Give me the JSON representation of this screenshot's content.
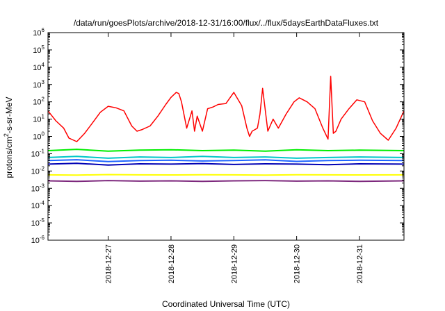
{
  "chart_data": {
    "type": "line",
    "title": "/data/run/goesPlots/archive/2018-12-31/16:00/flux/../flux/5daysEarthDataFluxes.txt",
    "xlabel": "Coordinated Universal Time (UTC)",
    "ylabel_parts": {
      "pre": "protons/cm",
      "sup": "2",
      "post": "-s-sr-MeV"
    },
    "x_unit": "day",
    "xlim": [
      "2018-12-26 01:00",
      "2018-12-31 17:00"
    ],
    "ylim": [
      1e-06,
      1000000.0
    ],
    "yscale": "log",
    "y_ticks": [
      {
        "value": 1e-06,
        "base": "10",
        "exp": "-6"
      },
      {
        "value": 1e-05,
        "base": "10",
        "exp": "-5"
      },
      {
        "value": 0.0001,
        "base": "10",
        "exp": "-4"
      },
      {
        "value": 0.001,
        "base": "10",
        "exp": "-3"
      },
      {
        "value": 0.01,
        "base": "10",
        "exp": "-2"
      },
      {
        "value": 0.1,
        "base": "10",
        "exp": "-1"
      },
      {
        "value": 1,
        "base": "10",
        "exp": "0"
      },
      {
        "value": 10,
        "base": "10",
        "exp": "1"
      },
      {
        "value": 100,
        "base": "10",
        "exp": "2"
      },
      {
        "value": 1000,
        "base": "10",
        "exp": "3"
      },
      {
        "value": 10000,
        "base": "10",
        "exp": "4"
      },
      {
        "value": 100000,
        "base": "10",
        "exp": "5"
      },
      {
        "value": 1000000,
        "base": "10",
        "exp": "6"
      }
    ],
    "x_ticks": [
      {
        "x": "2018-12-27",
        "label": "2018-12-27"
      },
      {
        "x": "2018-12-28",
        "label": "2018-12-28"
      },
      {
        "x": "2018-12-29",
        "label": "2018-12-29"
      },
      {
        "x": "2018-12-30",
        "label": "2018-12-30"
      },
      {
        "x": "2018-12-31",
        "label": "2018-12-31"
      }
    ],
    "grid": false,
    "legend": "none",
    "series": [
      {
        "color": "#ff0000",
        "x": [
          "2018-12-26 01:00",
          "2018-12-26 04:00",
          "2018-12-26 07:00",
          "2018-12-26 09:00",
          "2018-12-26 12:00",
          "2018-12-26 15:00",
          "2018-12-26 18:00",
          "2018-12-26 21:00",
          "2018-12-27 00:00",
          "2018-12-27 03:00",
          "2018-12-27 06:00",
          "2018-12-27 09:00",
          "2018-12-27 11:00",
          "2018-12-27 13:00",
          "2018-12-27 16:00",
          "2018-12-27 19:00",
          "2018-12-27 22:00",
          "2018-12-28 00:00",
          "2018-12-28 02:00",
          "2018-12-28 03:00",
          "2018-12-28 04:00",
          "2018-12-28 06:00",
          "2018-12-28 08:00",
          "2018-12-28 09:00",
          "2018-12-28 10:00",
          "2018-12-28 12:00",
          "2018-12-28 14:00",
          "2018-12-28 16:00",
          "2018-12-28 18:00",
          "2018-12-28 21:00",
          "2018-12-29 00:00",
          "2018-12-29 03:00",
          "2018-12-29 05:00",
          "2018-12-29 06:00",
          "2018-12-29 07:00",
          "2018-12-29 09:00",
          "2018-12-29 10:00",
          "2018-12-29 11:00",
          "2018-12-29 13:00",
          "2018-12-29 15:00",
          "2018-12-29 17:00",
          "2018-12-29 20:00",
          "2018-12-29 23:00",
          "2018-12-30 01:00",
          "2018-12-30 04:00",
          "2018-12-30 07:00",
          "2018-12-30 10:00",
          "2018-12-30 12:00",
          "2018-12-30 13:00",
          "2018-12-30 14:00",
          "2018-12-30 15:00",
          "2018-12-30 17:00",
          "2018-12-30 20:00",
          "2018-12-30 23:00",
          "2018-12-31 02:00",
          "2018-12-31 05:00",
          "2018-12-31 08:00",
          "2018-12-31 11:00",
          "2018-12-31 14:00",
          "2018-12-31 17:00"
        ],
        "y": [
          30,
          8,
          3,
          0.8,
          0.5,
          1.5,
          6,
          25,
          55,
          45,
          30,
          4,
          2,
          2.5,
          4,
          15,
          70,
          180,
          350,
          300,
          100,
          3,
          30,
          2,
          15,
          2,
          40,
          50,
          70,
          80,
          350,
          60,
          3,
          1,
          2,
          3,
          20,
          600,
          2,
          10,
          3,
          20,
          100,
          170,
          100,
          40,
          3,
          0.7,
          3000,
          1.5,
          2,
          10,
          40,
          130,
          100,
          8,
          1.5,
          0.6,
          3,
          30
        ]
      },
      {
        "color": "#00ee00",
        "x": [
          "2018-12-26 01:00",
          "2018-12-26 12:00",
          "2018-12-27 00:00",
          "2018-12-27 12:00",
          "2018-12-28 00:00",
          "2018-12-28 12:00",
          "2018-12-29 00:00",
          "2018-12-29 12:00",
          "2018-12-30 00:00",
          "2018-12-30 12:00",
          "2018-12-31 00:00",
          "2018-12-31 17:00"
        ],
        "y": [
          0.15,
          0.18,
          0.14,
          0.16,
          0.17,
          0.15,
          0.16,
          0.14,
          0.17,
          0.15,
          0.16,
          0.15
        ]
      },
      {
        "color": "#00c8c8",
        "x": [
          "2018-12-26 01:00",
          "2018-12-26 12:00",
          "2018-12-27 00:00",
          "2018-12-27 12:00",
          "2018-12-28 00:00",
          "2018-12-28 12:00",
          "2018-12-29 00:00",
          "2018-12-29 12:00",
          "2018-12-30 00:00",
          "2018-12-30 12:00",
          "2018-12-31 00:00",
          "2018-12-31 17:00"
        ],
        "y": [
          0.06,
          0.07,
          0.055,
          0.065,
          0.06,
          0.07,
          0.06,
          0.065,
          0.055,
          0.06,
          0.065,
          0.06
        ]
      },
      {
        "color": "#1e64ff",
        "x": [
          "2018-12-26 01:00",
          "2018-12-26 12:00",
          "2018-12-27 00:00",
          "2018-12-27 12:00",
          "2018-12-28 00:00",
          "2018-12-28 12:00",
          "2018-12-29 00:00",
          "2018-12-29 12:00",
          "2018-12-30 00:00",
          "2018-12-30 12:00",
          "2018-12-31 00:00",
          "2018-12-31 17:00"
        ],
        "y": [
          0.04,
          0.045,
          0.035,
          0.04,
          0.042,
          0.038,
          0.04,
          0.044,
          0.036,
          0.04,
          0.042,
          0.04
        ]
      },
      {
        "color": "#0000b4",
        "x": [
          "2018-12-26 01:00",
          "2018-12-26 12:00",
          "2018-12-27 00:00",
          "2018-12-27 12:00",
          "2018-12-28 00:00",
          "2018-12-28 12:00",
          "2018-12-29 00:00",
          "2018-12-29 12:00",
          "2018-12-30 00:00",
          "2018-12-30 12:00",
          "2018-12-31 00:00",
          "2018-12-31 17:00"
        ],
        "y": [
          0.025,
          0.028,
          0.022,
          0.026,
          0.025,
          0.027,
          0.024,
          0.026,
          0.025,
          0.023,
          0.026,
          0.025
        ]
      },
      {
        "color": "#ffff00",
        "x": [
          "2018-12-26 01:00",
          "2018-12-26 12:00",
          "2018-12-27 00:00",
          "2018-12-27 12:00",
          "2018-12-28 00:00",
          "2018-12-28 12:00",
          "2018-12-29 00:00",
          "2018-12-29 12:00",
          "2018-12-30 00:00",
          "2018-12-30 12:00",
          "2018-12-31 00:00",
          "2018-12-31 17:00"
        ],
        "y": [
          0.006,
          0.0058,
          0.0062,
          0.006,
          0.0059,
          0.0061,
          0.006,
          0.0058,
          0.0061,
          0.006,
          0.0059,
          0.006
        ]
      },
      {
        "color": "#7d287d",
        "x": [
          "2018-12-26 01:00",
          "2018-12-26 12:00",
          "2018-12-27 00:00",
          "2018-12-27 12:00",
          "2018-12-28 00:00",
          "2018-12-28 12:00",
          "2018-12-29 00:00",
          "2018-12-29 12:00",
          "2018-12-30 00:00",
          "2018-12-30 12:00",
          "2018-12-31 00:00",
          "2018-12-31 17:00"
        ],
        "y": [
          0.0027,
          0.0025,
          0.0028,
          0.0026,
          0.0027,
          0.0025,
          0.0027,
          0.0028,
          0.0026,
          0.0027,
          0.0025,
          0.0027
        ]
      }
    ]
  }
}
